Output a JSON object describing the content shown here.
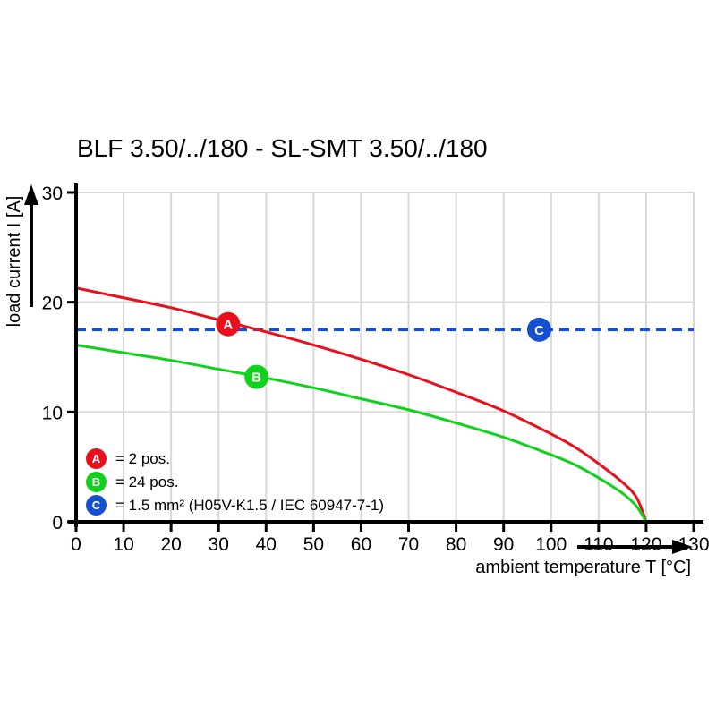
{
  "title": "BLF 3.50/../180 - SL-SMT 3.50/../180",
  "colors": {
    "background": "#ffffff",
    "grid": "#d8d8d8",
    "axis": "#000000",
    "series_a_red": "#e8101c",
    "series_b_green": "#10d11c",
    "series_c_blue": "#1550d2"
  },
  "chart_data": {
    "type": "line",
    "title": "BLF 3.50/../180 - SL-SMT 3.50/../180",
    "xlabel": "ambient temperature T [°C]",
    "ylabel": "load current I [A]",
    "xlim": [
      0,
      130
    ],
    "ylim": [
      0,
      30
    ],
    "x_ticks": [
      0,
      10,
      20,
      30,
      40,
      50,
      60,
      70,
      80,
      90,
      100,
      110,
      120,
      130
    ],
    "y_ticks": [
      0,
      10,
      20,
      30
    ],
    "grid": true,
    "legend_position": "inside-bottom-left",
    "series": [
      {
        "id": "A",
        "legend_label": "= 2 pos.",
        "color": "#e8101c",
        "line_style": "solid",
        "marker": {
          "letter": "A",
          "t": 32,
          "i": 18.0
        },
        "points": [
          [
            0,
            21.3
          ],
          [
            10,
            20.4
          ],
          [
            20,
            19.5
          ],
          [
            30,
            18.4
          ],
          [
            40,
            17.3
          ],
          [
            50,
            16.1
          ],
          [
            60,
            14.8
          ],
          [
            70,
            13.4
          ],
          [
            80,
            11.8
          ],
          [
            90,
            10.1
          ],
          [
            100,
            8.0
          ],
          [
            105,
            6.8
          ],
          [
            110,
            5.3
          ],
          [
            115,
            3.6
          ],
          [
            118,
            2.2
          ],
          [
            120,
            0
          ]
        ]
      },
      {
        "id": "B",
        "legend_label": "= 24 pos.",
        "color": "#10d11c",
        "line_style": "solid",
        "marker": {
          "letter": "B",
          "t": 38,
          "i": 13.2
        },
        "points": [
          [
            0,
            16.1
          ],
          [
            10,
            15.4
          ],
          [
            20,
            14.7
          ],
          [
            30,
            13.9
          ],
          [
            40,
            13.1
          ],
          [
            50,
            12.2
          ],
          [
            60,
            11.2
          ],
          [
            70,
            10.2
          ],
          [
            80,
            9.0
          ],
          [
            90,
            7.7
          ],
          [
            100,
            6.1
          ],
          [
            105,
            5.2
          ],
          [
            110,
            4.0
          ],
          [
            115,
            2.6
          ],
          [
            118,
            1.4
          ],
          [
            120,
            0
          ]
        ]
      },
      {
        "id": "C",
        "legend_label": "= 1.5 mm² (H05V-K1.5 / IEC 60947-7-1)",
        "color": "#1550d2",
        "line_style": "dashed",
        "marker": {
          "letter": "C",
          "t": 97.5,
          "i": 17.5
        },
        "points": [
          [
            0,
            17.5
          ],
          [
            130,
            17.5
          ]
        ]
      }
    ]
  }
}
